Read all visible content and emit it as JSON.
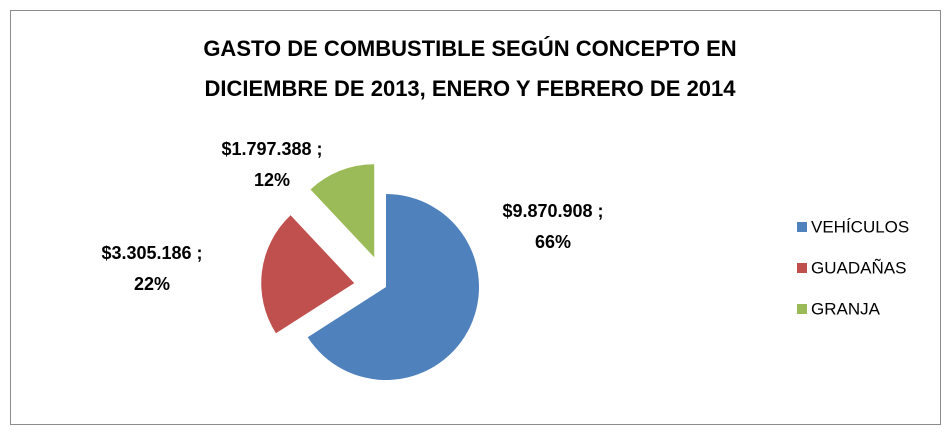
{
  "chart_data": {
    "type": "pie",
    "title": [
      "GASTO  DE COMBUSTIBLE SEGÚN CONCEPTO EN",
      "DICIEMBRE DE 2013, ENERO Y FEBRERO DE 2014"
    ],
    "categories": [
      "VEHÍCULOS",
      "GUADAÑAS",
      "GRANJA"
    ],
    "values": [
      9870908,
      3305186,
      1797388
    ],
    "value_labels": [
      "$9.870.908 ;",
      "$3.305.186 ;",
      "$1.797.388 ;"
    ],
    "percents": [
      66,
      22,
      12
    ],
    "percent_labels": [
      "66%",
      "22%",
      "12%"
    ],
    "colors": [
      "#4f81bd",
      "#c0504d",
      "#9bbb59"
    ],
    "legend": "right"
  }
}
